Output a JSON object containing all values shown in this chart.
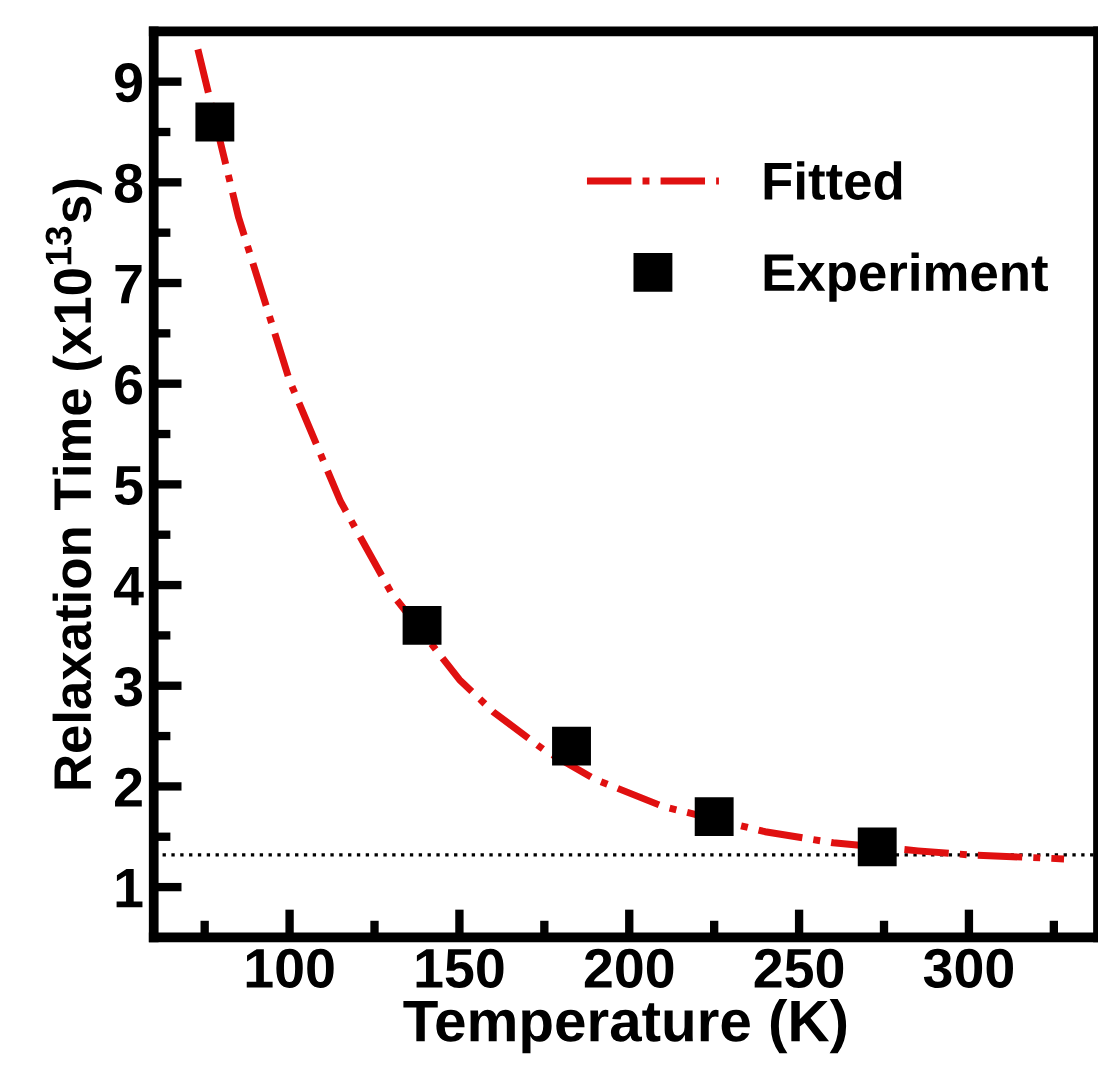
{
  "chart_data": {
    "type": "scatter",
    "xlabel": "Temperature (K)",
    "ylabel": "Relaxation Time (x10$^{13}$s)",
    "series": [
      {
        "name": "Fitted",
        "type": "line",
        "color": "#e01010",
        "line_style": "dashdot",
        "marker": "none",
        "x": [
          73,
          85,
          100,
          115,
          130,
          150,
          160,
          175,
          190,
          210,
          240,
          260,
          285,
          300,
          328
        ],
        "values": [
          9.32,
          7.65,
          6.03,
          4.83,
          3.92,
          3.06,
          2.74,
          2.36,
          2.07,
          1.8,
          1.55,
          1.44,
          1.36,
          1.32,
          1.28
        ]
      },
      {
        "name": "Experiment",
        "color": "#000000",
        "marker": "square",
        "x": [
          78,
          139,
          183,
          225,
          273
        ],
        "values": [
          8.6,
          3.6,
          2.4,
          1.7,
          1.4
        ]
      }
    ],
    "xlim": [
      60,
      338
    ],
    "ylim": [
      0.5,
      9.5
    ],
    "xticks": [
      {
        "value": 75,
        "label": null
      },
      100,
      {
        "value": 125,
        "label": null
      },
      150,
      {
        "value": 175,
        "label": null
      },
      200,
      {
        "value": 225,
        "label": null
      },
      250,
      {
        "value": 275,
        "label": null
      },
      300,
      {
        "value": 325,
        "label": null
      }
    ],
    "yticks": [
      1,
      {
        "value": 1.5,
        "label": null
      },
      2,
      {
        "value": 2.5,
        "label": null
      },
      3,
      {
        "value": 3.5,
        "label": null
      },
      4,
      {
        "value": 4.5,
        "label": null
      },
      5,
      {
        "value": 5.5,
        "label": null
      },
      6,
      {
        "value": 6.5,
        "label": null
      },
      7,
      {
        "value": 7.5,
        "label": null
      },
      8,
      {
        "value": 8.5,
        "label": null
      },
      9
    ],
    "ref_lines": [
      {
        "axis": "y",
        "value": 1.32,
        "color": "#000000",
        "line_style": "dotted"
      }
    ],
    "legend": "top right",
    "grid": false
  }
}
